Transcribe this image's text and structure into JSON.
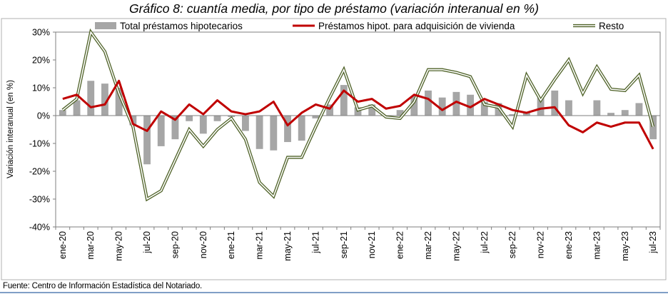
{
  "title": "Gráfico 8: cuantía media, por tipo de préstamo (variación interanual en %)",
  "source": "Fuente: Centro de Información Estadística del Notariado.",
  "chart_data": {
    "type": "bar",
    "title": "Gráfico 8: cuantía media, por tipo de préstamo (variación interanual en %)",
    "ylabel": "Variación interanual (en %)",
    "ylim": [
      -40,
      30
    ],
    "yticks": [
      30,
      20,
      10,
      0,
      -10,
      -20,
      -30,
      -40
    ],
    "ytick_labels": [
      "30%",
      "20%",
      "10%",
      "0%",
      "-10%",
      "-20%",
      "-30%",
      "-40%"
    ],
    "grid": false,
    "legend_position": "top",
    "categories": [
      "ene-20",
      "feb-20",
      "mar-20",
      "abr-20",
      "may-20",
      "jun-20",
      "jul-20",
      "ago-20",
      "sep-20",
      "oct-20",
      "nov-20",
      "dic-20",
      "ene-21",
      "feb-21",
      "mar-21",
      "abr-21",
      "may-21",
      "jun-21",
      "jul-21",
      "ago-21",
      "sep-21",
      "oct-21",
      "nov-21",
      "dic-21",
      "ene-22",
      "feb-22",
      "mar-22",
      "abr-22",
      "may-22",
      "jun-22",
      "jul-22",
      "ago-22",
      "sep-22",
      "oct-22",
      "nov-22",
      "dic-22",
      "ene-23",
      "feb-23",
      "mar-23",
      "abr-23",
      "may-23",
      "jun-23",
      "jul-23"
    ],
    "xtick_labels": [
      "ene-20",
      "",
      "mar-20",
      "",
      "may-20",
      "",
      "jul-20",
      "",
      "sep-20",
      "",
      "nov-20",
      "",
      "ene-21",
      "",
      "mar-21",
      "",
      "may-21",
      "",
      "jul-21",
      "",
      "sep-21",
      "",
      "nov-21",
      "",
      "ene-22",
      "",
      "mar-22",
      "",
      "may-22",
      "",
      "jul-22",
      "",
      "sep-22",
      "",
      "nov-22",
      "",
      "ene-23",
      "",
      "mar-23",
      "",
      "may-23",
      "",
      "jul-23"
    ],
    "series": [
      {
        "name": "Total préstamos hipotecarios",
        "type": "bar",
        "color": "#a6a6a6",
        "values": [
          2,
          5.5,
          12.5,
          11.5,
          10,
          -3.5,
          -17.5,
          -11,
          -8.5,
          -2,
          -6.5,
          -2,
          -0.5,
          -5.5,
          -12,
          -12.5,
          -9.5,
          -9,
          -1,
          4,
          11,
          3,
          4,
          0,
          2,
          7,
          9,
          6.5,
          8.5,
          7.5,
          5,
          4.5,
          0.5,
          1,
          6.5,
          9,
          5.5,
          0,
          5.5,
          1,
          2,
          4.5,
          -8.5
        ]
      },
      {
        "name": "Préstamos hipot. para adquisición de vivienda",
        "type": "line",
        "color": "#c00000",
        "values": [
          6,
          7.5,
          3,
          4,
          12.5,
          -3,
          -5.5,
          1.5,
          -1.5,
          4,
          0.5,
          5.5,
          1.5,
          0.5,
          1.5,
          5,
          -3.5,
          1,
          4,
          2.5,
          9,
          5,
          6,
          2.5,
          3.5,
          7.5,
          6,
          2,
          5,
          3,
          6,
          4,
          2,
          1,
          2.5,
          3,
          -3.5,
          -6,
          -2.5,
          -4,
          -2.5,
          -2.5,
          -12
        ]
      },
      {
        "name": "Resto",
        "type": "line",
        "color": "#4f6228",
        "values": [
          2,
          6,
          30,
          23,
          8,
          -4,
          -30,
          -27,
          -16,
          -5,
          -11,
          -5,
          -1,
          -8.5,
          -24,
          -29,
          -15,
          -15,
          -4,
          6.5,
          16.5,
          2,
          3.5,
          -0.5,
          -1,
          5,
          16.5,
          16.5,
          15.5,
          14,
          4,
          3,
          -4,
          14.5,
          5.5,
          13,
          20,
          8,
          17.5,
          9.5,
          9,
          14.5,
          -4
        ]
      }
    ]
  }
}
